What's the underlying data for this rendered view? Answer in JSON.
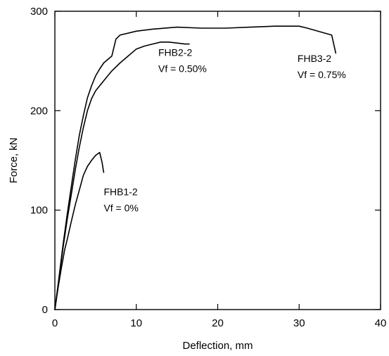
{
  "chart_data": {
    "type": "line",
    "title": "",
    "xlabel": "Deflection, mm",
    "ylabel": "Force, kN",
    "xlim": [
      0,
      40
    ],
    "ylim": [
      0,
      300
    ],
    "xticks": [
      0,
      10,
      20,
      30,
      40
    ],
    "yticks": [
      0,
      100,
      200,
      300
    ],
    "xtick_labels": [
      "0",
      "10",
      "20",
      "30",
      "40"
    ],
    "ytick_labels": [
      "0",
      "100",
      "200",
      "300"
    ],
    "grid": false,
    "series": [
      {
        "specimen": "FHB1-2",
        "fiber_label": "Vf = 0%",
        "x": [
          0,
          0.4,
          0.8,
          1.2,
          1.5,
          2.0,
          2.5,
          3.0,
          3.5,
          4.0,
          4.5,
          5.0,
          5.5,
          5.8,
          6.0
        ],
        "y": [
          0,
          22,
          42,
          60,
          70,
          88,
          105,
          120,
          135,
          144,
          150,
          155,
          158,
          148,
          138
        ]
      },
      {
        "specimen": "FHB2-2",
        "fiber_label": "Vf = 0.50%",
        "x": [
          0,
          0.5,
          1.0,
          1.5,
          2.0,
          2.5,
          3.0,
          3.5,
          4.0,
          4.5,
          5.0,
          6.0,
          7.0,
          8.0,
          9.0,
          10.0,
          11.0,
          12.0,
          13.0,
          14.0,
          15.0,
          16.0,
          16.5
        ],
        "y": [
          0,
          30,
          62,
          90,
          115,
          140,
          163,
          183,
          200,
          212,
          220,
          230,
          240,
          248,
          255,
          262,
          265,
          267,
          269,
          269,
          268,
          267,
          267
        ]
      },
      {
        "specimen": "FHB3-2",
        "fiber_label": "Vf = 0.75%",
        "x": [
          0,
          0.5,
          1.0,
          1.5,
          2.0,
          2.5,
          3.0,
          3.5,
          4.0,
          4.5,
          5.0,
          5.5,
          6.0,
          7.0,
          7.5,
          8.0,
          10.0,
          12.0,
          15.0,
          18.0,
          21.0,
          24.0,
          27.0,
          30.0,
          31.0,
          34.0,
          34.5
        ],
        "y": [
          0,
          32,
          65,
          95,
          123,
          150,
          175,
          195,
          213,
          225,
          235,
          242,
          248,
          255,
          272,
          276,
          280,
          282,
          284,
          283,
          283,
          284,
          285,
          285,
          283,
          276,
          258
        ]
      }
    ],
    "annotations": [
      {
        "line1": "FHB1-2",
        "line2": "Vf = 0%",
        "x": 6.0,
        "y": 115
      },
      {
        "line1": "FHB2-2",
        "line2": "Vf = 0.50%",
        "x": 12.7,
        "y": 255
      },
      {
        "line1": "FHB3-2",
        "line2": "Vf = 0.75%",
        "x": 29.8,
        "y": 249
      }
    ]
  }
}
